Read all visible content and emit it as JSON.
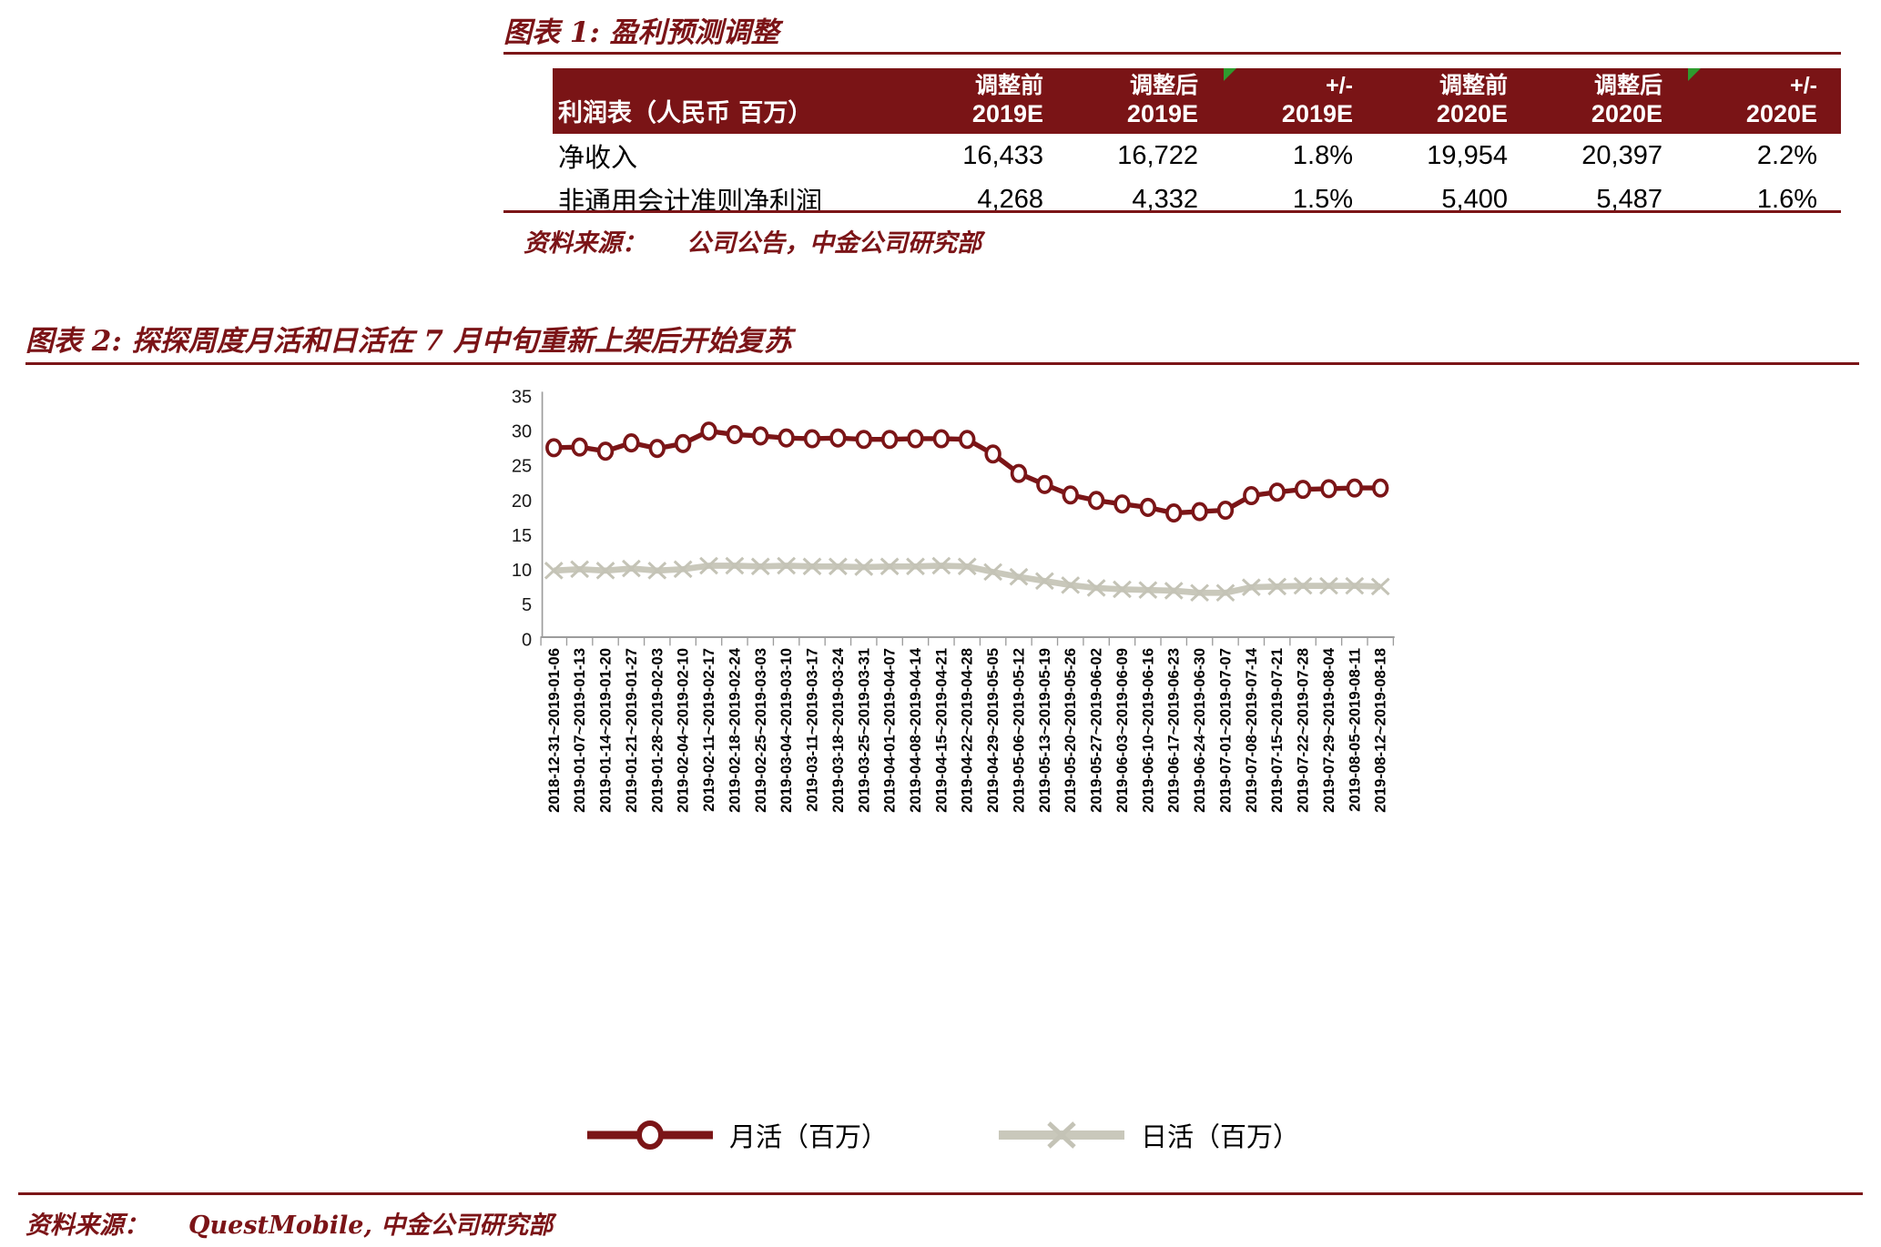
{
  "figure1": {
    "title": "图表 1: 盈利预测调整",
    "table": {
      "row_header": "利润表（人民币 百万）",
      "col_headers": [
        {
          "l1": "调整前",
          "l2": "2019E",
          "flag": false
        },
        {
          "l1": "调整后",
          "l2": "2019E",
          "flag": false
        },
        {
          "l1": "+/-",
          "l2": "2019E",
          "flag": true
        },
        {
          "l1": "调整前",
          "l2": "2020E",
          "flag": false
        },
        {
          "l1": "调整后",
          "l2": "2020E",
          "flag": false
        },
        {
          "l1": "+/-",
          "l2": "2020E",
          "flag": true
        }
      ],
      "rows": [
        {
          "label": "净收入",
          "values": [
            "16,433",
            "16,722",
            "1.8%",
            "19,954",
            "20,397",
            "2.2%"
          ]
        },
        {
          "label": "非通用会计准则净利润",
          "values": [
            "4,268",
            "4,332",
            "1.5%",
            "5,400",
            "5,487",
            "1.6%"
          ]
        }
      ]
    },
    "source_label": "资料来源：",
    "source_text": "公司公告，中金公司研究部"
  },
  "figure2": {
    "title": "图表 2: 探探周度月活和日活在 7 月中旬重新上架后开始复苏",
    "source_label": "资料来源：",
    "source_text": "QuestMobile,  中金公司研究部"
  },
  "chart_data": {
    "type": "line",
    "title": "探探周度月活和日活在 7 月中旬重新上架后开始复苏",
    "xlabel": "",
    "ylabel": "",
    "ylim": [
      0,
      35
    ],
    "yticks": [
      0,
      5,
      10,
      15,
      20,
      25,
      30,
      35
    ],
    "grid": false,
    "legend_position": "bottom",
    "categories": [
      "2018-12-31~2019-01-06",
      "2019-01-07~2019-01-13",
      "2019-01-14~2019-01-20",
      "2019-01-21~2019-01-27",
      "2019-01-28~2019-02-03",
      "2019-02-04~2019-02-10",
      "2019-02-11~2019-02-17",
      "2019-02-18~2019-02-24",
      "2019-02-25~2019-03-03",
      "2019-03-04~2019-03-10",
      "2019-03-11~2019-03-17",
      "2019-03-18~2019-03-24",
      "2019-03-25~2019-03-31",
      "2019-04-01~2019-04-07",
      "2019-04-08~2019-04-14",
      "2019-04-15~2019-04-21",
      "2019-04-22~2019-04-28",
      "2019-04-29~2019-05-05",
      "2019-05-06~2019-05-12",
      "2019-05-13~2019-05-19",
      "2019-05-20~2019-05-26",
      "2019-05-27~2019-06-02",
      "2019-06-03~2019-06-09",
      "2019-06-10~2019-06-16",
      "2019-06-17~2019-06-23",
      "2019-06-24~2019-06-30",
      "2019-07-01~2019-07-07",
      "2019-07-08~2019-07-14",
      "2019-07-15~2019-07-21",
      "2019-07-22~2019-07-28",
      "2019-07-29~2019-08-04",
      "2019-08-05~2019-08-11",
      "2019-08-12~2019-08-18"
    ],
    "series": [
      {
        "name": "月活（百万）",
        "marker": "circle",
        "color": "#7B1517",
        "values": [
          27.2,
          27.3,
          26.7,
          27.9,
          27.1,
          27.8,
          29.6,
          29.1,
          28.9,
          28.6,
          28.5,
          28.6,
          28.4,
          28.4,
          28.5,
          28.5,
          28.4,
          26.3,
          23.5,
          21.9,
          20.4,
          19.6,
          19.1,
          18.6,
          17.8,
          18.0,
          18.2,
          20.3,
          20.8,
          21.2,
          21.3,
          21.4,
          21.4
        ]
      },
      {
        "name": "日活（百万）",
        "marker": "x",
        "color": "#C9C8BB",
        "values": [
          9.5,
          9.7,
          9.5,
          9.8,
          9.5,
          9.7,
          10.2,
          10.2,
          10.1,
          10.2,
          10.1,
          10.1,
          10.0,
          10.1,
          10.1,
          10.2,
          10.1,
          9.3,
          8.6,
          8.0,
          7.4,
          7.0,
          6.8,
          6.7,
          6.6,
          6.3,
          6.3,
          7.1,
          7.2,
          7.3,
          7.3,
          7.3,
          7.2
        ]
      }
    ],
    "axis_color": "#9C9C9C"
  }
}
